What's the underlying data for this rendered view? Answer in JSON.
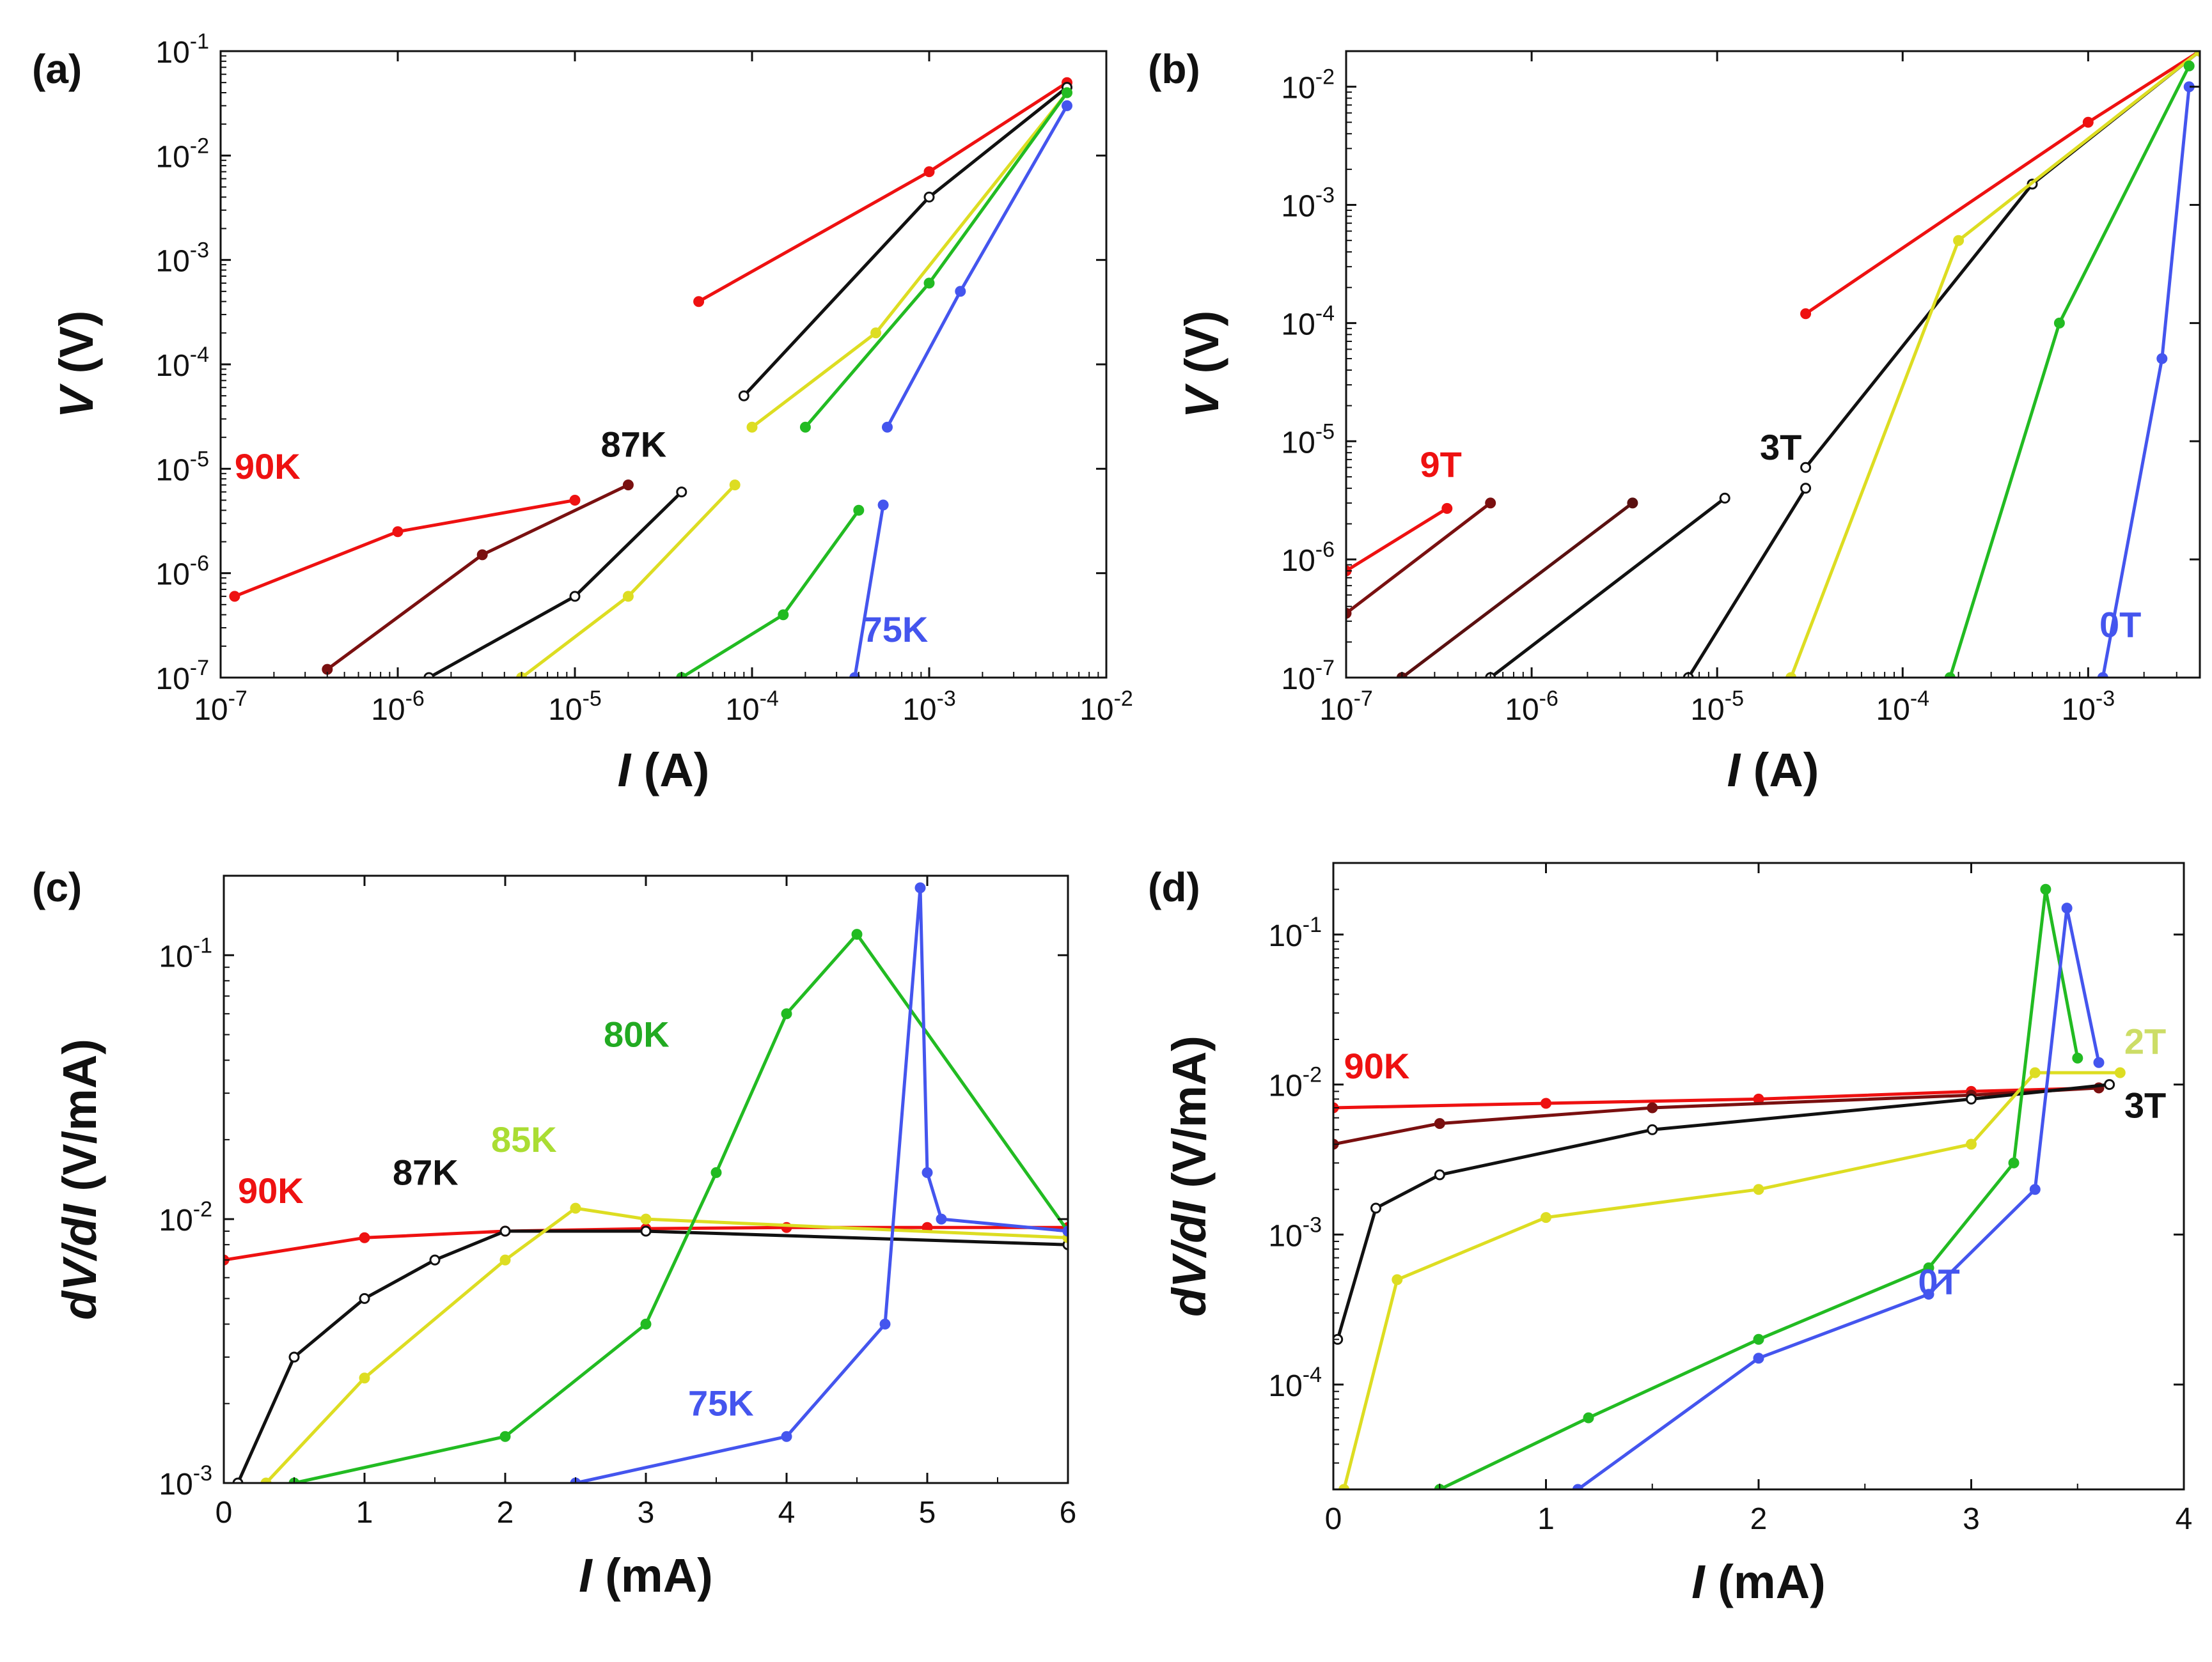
{
  "chart_data": [
    {
      "panel": "(a)",
      "type": "line",
      "xlabel": "I (A)",
      "ylabel": "V (V)",
      "xscale": "log",
      "yscale": "log",
      "xlim": [
        1e-07,
        0.01
      ],
      "ylim": [
        1e-07,
        0.1
      ],
      "xticks": [
        1e-07,
        1e-06,
        1e-05,
        0.0001,
        0.001,
        0.01
      ],
      "yticks": [
        1e-07,
        1e-06,
        1e-05,
        0.0001,
        0.001,
        0.01,
        0.1
      ],
      "x_tick_labels": [
        {
          "base": "10",
          "exp": "-7"
        },
        {
          "base": "10",
          "exp": "-6"
        },
        {
          "base": "10",
          "exp": "-5"
        },
        {
          "base": "10",
          "exp": "-4"
        },
        {
          "base": "10",
          "exp": "-3"
        },
        {
          "base": "10",
          "exp": "-2"
        }
      ],
      "y_tick_labels": [
        {
          "base": "10",
          "exp": "-7"
        },
        {
          "base": "10",
          "exp": "-6"
        },
        {
          "base": "10",
          "exp": "-5"
        },
        {
          "base": "10",
          "exp": "-4"
        },
        {
          "base": "10",
          "exp": "-3"
        },
        {
          "base": "10",
          "exp": "-2"
        },
        {
          "base": "10",
          "exp": "-1"
        }
      ],
      "annotations": [
        {
          "text": "90K",
          "color": "#ee1111",
          "x": 1.2e-07,
          "y": 8e-06
        },
        {
          "text": "87K",
          "color": "#111111",
          "x": 1.4e-05,
          "y": 1.3e-05
        },
        {
          "text": "75K",
          "color": "#4455ee",
          "x": 0.00042,
          "y": 2.2e-07
        }
      ],
      "series": [
        {
          "color": "#ee1111",
          "x": [
            1.2e-07,
            1e-06,
            1e-05
          ],
          "y": [
            6e-07,
            2.5e-06,
            5e-06
          ]
        },
        {
          "color": "#7a1010",
          "x": [
            4e-07,
            3e-06,
            2e-05
          ],
          "y": [
            1.2e-07,
            1.5e-06,
            7e-06
          ]
        },
        {
          "color": "#111111",
          "x": [
            1.5e-06,
            1e-05,
            4e-05
          ],
          "y": [
            1e-07,
            6e-07,
            6e-06
          ]
        },
        {
          "color": "#dddd22",
          "x": [
            5e-06,
            2e-05,
            8e-05
          ],
          "y": [
            1e-07,
            6e-07,
            7e-06
          ]
        },
        {
          "color": "#22bb22",
          "x": [
            4e-05,
            0.00015,
            0.0004
          ],
          "y": [
            1e-07,
            4e-07,
            4e-06
          ]
        },
        {
          "color": "#4455ee",
          "x": [
            0.00038,
            0.00055
          ],
          "y": [
            1e-07,
            4.5e-06
          ]
        },
        {
          "color": "#ee1111",
          "x": [
            5e-05,
            0.001,
            0.006
          ],
          "y": [
            0.0004,
            0.007,
            0.05
          ]
        },
        {
          "color": "#111111",
          "x": [
            9e-05,
            0.001,
            0.006
          ],
          "y": [
            5e-05,
            0.004,
            0.045
          ]
        },
        {
          "color": "#dddd22",
          "x": [
            0.0001,
            0.0005,
            0.006
          ],
          "y": [
            2.5e-05,
            0.0002,
            0.04
          ]
        },
        {
          "color": "#22bb22",
          "x": [
            0.0002,
            0.001,
            0.006
          ],
          "y": [
            2.5e-05,
            0.0006,
            0.04
          ]
        },
        {
          "color": "#4455ee",
          "x": [
            0.00058,
            0.0015,
            0.006
          ],
          "y": [
            2.5e-05,
            0.0005,
            0.03
          ]
        }
      ]
    },
    {
      "panel": "(b)",
      "type": "line",
      "xlabel": "I (A)",
      "ylabel": "V (V)",
      "xscale": "log",
      "yscale": "log",
      "xlim": [
        1e-07,
        0.004
      ],
      "ylim": [
        1e-07,
        0.02
      ],
      "xticks": [
        1e-07,
        1e-06,
        1e-05,
        0.0001,
        0.001
      ],
      "yticks": [
        1e-07,
        1e-06,
        1e-05,
        0.0001,
        0.001,
        0.01
      ],
      "x_tick_labels": [
        {
          "base": "10",
          "exp": "-7"
        },
        {
          "base": "10",
          "exp": "-6"
        },
        {
          "base": "10",
          "exp": "-5"
        },
        {
          "base": "10",
          "exp": "-4"
        },
        {
          "base": "10",
          "exp": "-3"
        }
      ],
      "y_tick_labels": [
        {
          "base": "10",
          "exp": "-7"
        },
        {
          "base": "10",
          "exp": "-6"
        },
        {
          "base": "10",
          "exp": "-5"
        },
        {
          "base": "10",
          "exp": "-4"
        },
        {
          "base": "10",
          "exp": "-3"
        },
        {
          "base": "10",
          "exp": "-2"
        }
      ],
      "annotations": [
        {
          "text": "9T",
          "color": "#ee1111",
          "x": 2.5e-07,
          "y": 5e-06
        },
        {
          "text": "3T",
          "color": "#111111",
          "x": 1.7e-05,
          "y": 7e-06
        },
        {
          "text": "0T",
          "color": "#4455ee",
          "x": 0.00115,
          "y": 2.2e-07
        }
      ],
      "series": [
        {
          "color": "#ee1111",
          "x": [
            1e-07,
            3.5e-07
          ],
          "y": [
            8e-07,
            2.7e-06
          ]
        },
        {
          "color": "#7a1010",
          "x": [
            1e-07,
            6e-07
          ],
          "y": [
            3.5e-07,
            3e-06
          ]
        },
        {
          "color": "#5a1010",
          "x": [
            2e-07,
            3.5e-06
          ],
          "y": [
            1e-07,
            3e-06
          ]
        },
        {
          "color": "#111111",
          "x": [
            6e-07,
            1.1e-05
          ],
          "y": [
            1e-07,
            3.3e-06
          ]
        },
        {
          "color": "#111111",
          "x": [
            7e-06,
            3e-05
          ],
          "y": [
            1e-07,
            4e-06
          ]
        },
        {
          "color": "#ee1111",
          "x": [
            3e-05,
            0.001,
            0.004
          ],
          "y": [
            0.00012,
            0.005,
            0.02
          ]
        },
        {
          "color": "#111111",
          "x": [
            3e-05,
            0.0005,
            0.004
          ],
          "y": [
            6e-06,
            0.0015,
            0.02
          ]
        },
        {
          "color": "#dddd22",
          "x": [
            2.5e-05,
            0.0002,
            0.004
          ],
          "y": [
            1e-07,
            0.0005,
            0.02
          ]
        },
        {
          "color": "#22bb22",
          "x": [
            0.00018,
            0.0007,
            0.0035
          ],
          "y": [
            1e-07,
            0.0001,
            0.015
          ]
        },
        {
          "color": "#4455ee",
          "x": [
            0.0012,
            0.0025,
            0.0035
          ],
          "y": [
            1e-07,
            5e-05,
            0.01
          ]
        }
      ]
    },
    {
      "panel": "(c)",
      "type": "line",
      "xlabel": "I (mA)",
      "ylabel": "dV/dI (V/mA)",
      "xscale": "linear",
      "yscale": "log",
      "xlim": [
        0,
        6
      ],
      "ylim": [
        0.001,
        0.2
      ],
      "xticks": [
        0,
        1,
        2,
        3,
        4,
        5,
        6
      ],
      "yticks": [
        0.001,
        0.01,
        0.1
      ],
      "x_tick_labels": [
        "0",
        "1",
        "2",
        "3",
        "4",
        "5",
        "6"
      ],
      "y_tick_labels": [
        {
          "base": "10",
          "exp": "-3"
        },
        {
          "base": "10",
          "exp": "-2"
        },
        {
          "base": "10",
          "exp": "-1"
        }
      ],
      "annotations": [
        {
          "text": "90K",
          "color": "#ee1111",
          "x": 0.1,
          "y": 0.0115
        },
        {
          "text": "87K",
          "color": "#111111",
          "x": 1.2,
          "y": 0.0135
        },
        {
          "text": "85K",
          "color": "#aadd33",
          "x": 1.9,
          "y": 0.018
        },
        {
          "text": "80K",
          "color": "#22aa22",
          "x": 2.7,
          "y": 0.045
        },
        {
          "text": "75K",
          "color": "#4455ee",
          "x": 3.3,
          "y": 0.0018
        }
      ],
      "series": [
        {
          "color": "#ee1111",
          "x": [
            0,
            1,
            2,
            3,
            4,
            5,
            6
          ],
          "y": [
            0.007,
            0.0085,
            0.009,
            0.0092,
            0.0093,
            0.0093,
            0.0093
          ]
        },
        {
          "color": "#111111",
          "x": [
            0.1,
            0.5,
            1,
            1.5,
            2,
            3,
            6
          ],
          "y": [
            0.001,
            0.003,
            0.005,
            0.007,
            0.009,
            0.009,
            0.008
          ]
        },
        {
          "color": "#dddd22",
          "x": [
            0.3,
            1,
            2,
            2.5,
            3,
            6
          ],
          "y": [
            0.001,
            0.0025,
            0.007,
            0.011,
            0.01,
            0.0085
          ]
        },
        {
          "color": "#22bb22",
          "x": [
            0.5,
            2,
            3,
            3.5,
            4,
            4.5,
            6
          ],
          "y": [
            0.001,
            0.0015,
            0.004,
            0.015,
            0.06,
            0.12,
            0.009
          ]
        },
        {
          "color": "#4455ee",
          "x": [
            2.5,
            4,
            4.7,
            4.95,
            5,
            5.1,
            6
          ],
          "y": [
            0.001,
            0.0015,
            0.004,
            0.18,
            0.015,
            0.01,
            0.009
          ]
        }
      ]
    },
    {
      "panel": "(d)",
      "type": "line",
      "xlabel": "I (mA)",
      "ylabel": "dV/dI (V/mA)",
      "xscale": "linear",
      "yscale": "log",
      "xlim": [
        0,
        4
      ],
      "ylim": [
        2e-05,
        0.3
      ],
      "xticks": [
        0,
        1,
        2,
        3,
        4
      ],
      "yticks": [
        0.0001,
        0.001,
        0.01,
        0.1
      ],
      "x_tick_labels": [
        "0",
        "1",
        "2",
        "3",
        "4"
      ],
      "y_tick_labels": [
        {
          "base": "10",
          "exp": "-4"
        },
        {
          "base": "10",
          "exp": "-3"
        },
        {
          "base": "10",
          "exp": "-2"
        },
        {
          "base": "10",
          "exp": "-1"
        }
      ],
      "annotations": [
        {
          "text": "90K",
          "color": "#ee1111",
          "x": 0.05,
          "y": 0.011
        },
        {
          "text": "2T",
          "color": "#ccdd66",
          "x": 3.72,
          "y": 0.016
        },
        {
          "text": "3T",
          "color": "#111111",
          "x": 3.72,
          "y": 0.006
        },
        {
          "text": "0T",
          "color": "#4455ee",
          "x": 2.75,
          "y": 0.0004
        }
      ],
      "series": [
        {
          "color": "#ee1111",
          "x": [
            0,
            1,
            2,
            3,
            3.6
          ],
          "y": [
            0.007,
            0.0075,
            0.008,
            0.009,
            0.0095
          ]
        },
        {
          "color": "#7a1010",
          "x": [
            0,
            0.5,
            1.5,
            3,
            3.6
          ],
          "y": [
            0.004,
            0.0055,
            0.007,
            0.0085,
            0.0095
          ]
        },
        {
          "color": "#111111",
          "x": [
            0.02,
            0.2,
            0.5,
            1.5,
            3,
            3.65
          ],
          "y": [
            0.0002,
            0.0015,
            0.0025,
            0.005,
            0.008,
            0.01
          ]
        },
        {
          "color": "#dddd22",
          "x": [
            0.05,
            0.3,
            1,
            2,
            3,
            3.3,
            3.7
          ],
          "y": [
            2e-05,
            0.0005,
            0.0013,
            0.002,
            0.004,
            0.012,
            0.012
          ]
        },
        {
          "color": "#22bb22",
          "x": [
            0.5,
            1.2,
            2,
            2.8,
            3.2,
            3.35,
            3.5
          ],
          "y": [
            2e-05,
            6e-05,
            0.0002,
            0.0006,
            0.003,
            0.2,
            0.015
          ]
        },
        {
          "color": "#4455ee",
          "x": [
            1.15,
            2,
            2.8,
            3.3,
            3.45,
            3.6
          ],
          "y": [
            2e-05,
            0.00015,
            0.0004,
            0.002,
            0.15,
            0.014
          ]
        }
      ]
    }
  ]
}
